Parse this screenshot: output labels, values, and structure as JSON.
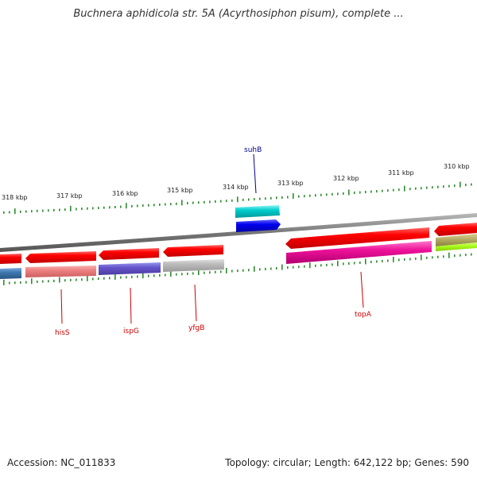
{
  "title": "Buchnera aphidicola str. 5A (Acyrthosiphon pisum), complete ...",
  "footer": {
    "accession": "Accession: NC_011833",
    "summary": "Topology: circular; Length: 642,122 bp; Genes: 590"
  },
  "ruler": {
    "ticks": [
      "318 kbp",
      "317 kbp",
      "316 kbp",
      "315 kbp",
      "314 kbp",
      "313 kbp",
      "312 kbp",
      "311 kbp",
      "310 kbp"
    ]
  },
  "genes": {
    "suhB": "suhB",
    "hisS": "hisS",
    "ispG": "ispG",
    "yfgB": "yfgB",
    "topA": "topA"
  },
  "colors": {
    "backbone": "#808080",
    "forward_cds": "#ff0000",
    "tick": "#2e8b2e",
    "suhB_label": "#00008b",
    "gene_label": "#cc0000"
  }
}
